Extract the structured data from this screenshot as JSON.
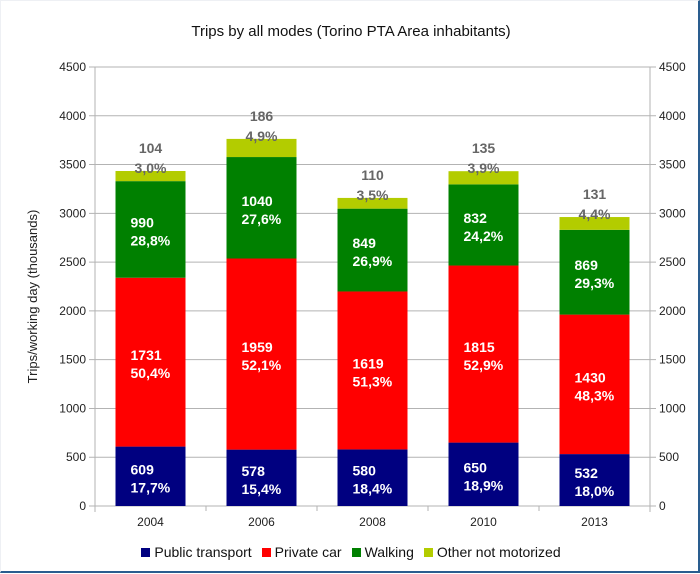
{
  "chart_data": {
    "type": "bar",
    "stacked": true,
    "title": "Trips by all modes (Torino PTA Area inhabitants)",
    "xlabel": "",
    "ylabel": "Trips/working day (thousands)",
    "ylim": [
      0,
      4500
    ],
    "yticks": [
      0,
      500,
      1000,
      1500,
      2000,
      2500,
      3000,
      3500,
      4000,
      4500
    ],
    "secondary_yaxis": true,
    "grid": true,
    "legend_position": "bottom",
    "categories": [
      "2004",
      "2006",
      "2008",
      "2010",
      "2013"
    ],
    "series": [
      {
        "name": "Public transport",
        "color": "#000080",
        "values": [
          609,
          578,
          580,
          650,
          532
        ],
        "percent_labels": [
          "17,7%",
          "15,4%",
          "18,4%",
          "18,9%",
          "18,0%"
        ]
      },
      {
        "name": "Private car",
        "color": "#ff0000",
        "values": [
          1731,
          1959,
          1619,
          1815,
          1430
        ],
        "percent_labels": [
          "50,4%",
          "52,1%",
          "51,3%",
          "52,9%",
          "48,3%"
        ]
      },
      {
        "name": "Walking",
        "color": "#008000",
        "values": [
          990,
          1040,
          849,
          832,
          869
        ],
        "percent_labels": [
          "28,8%",
          "27,6%",
          "26,9%",
          "24,2%",
          "29,3%"
        ]
      },
      {
        "name": "Other not motorized",
        "color": "#b3cc00",
        "values": [
          104,
          186,
          110,
          135,
          131
        ],
        "percent_labels": [
          "3,0%",
          "4,9%",
          "3,5%",
          "3,9%",
          "4,4%"
        ]
      }
    ]
  }
}
